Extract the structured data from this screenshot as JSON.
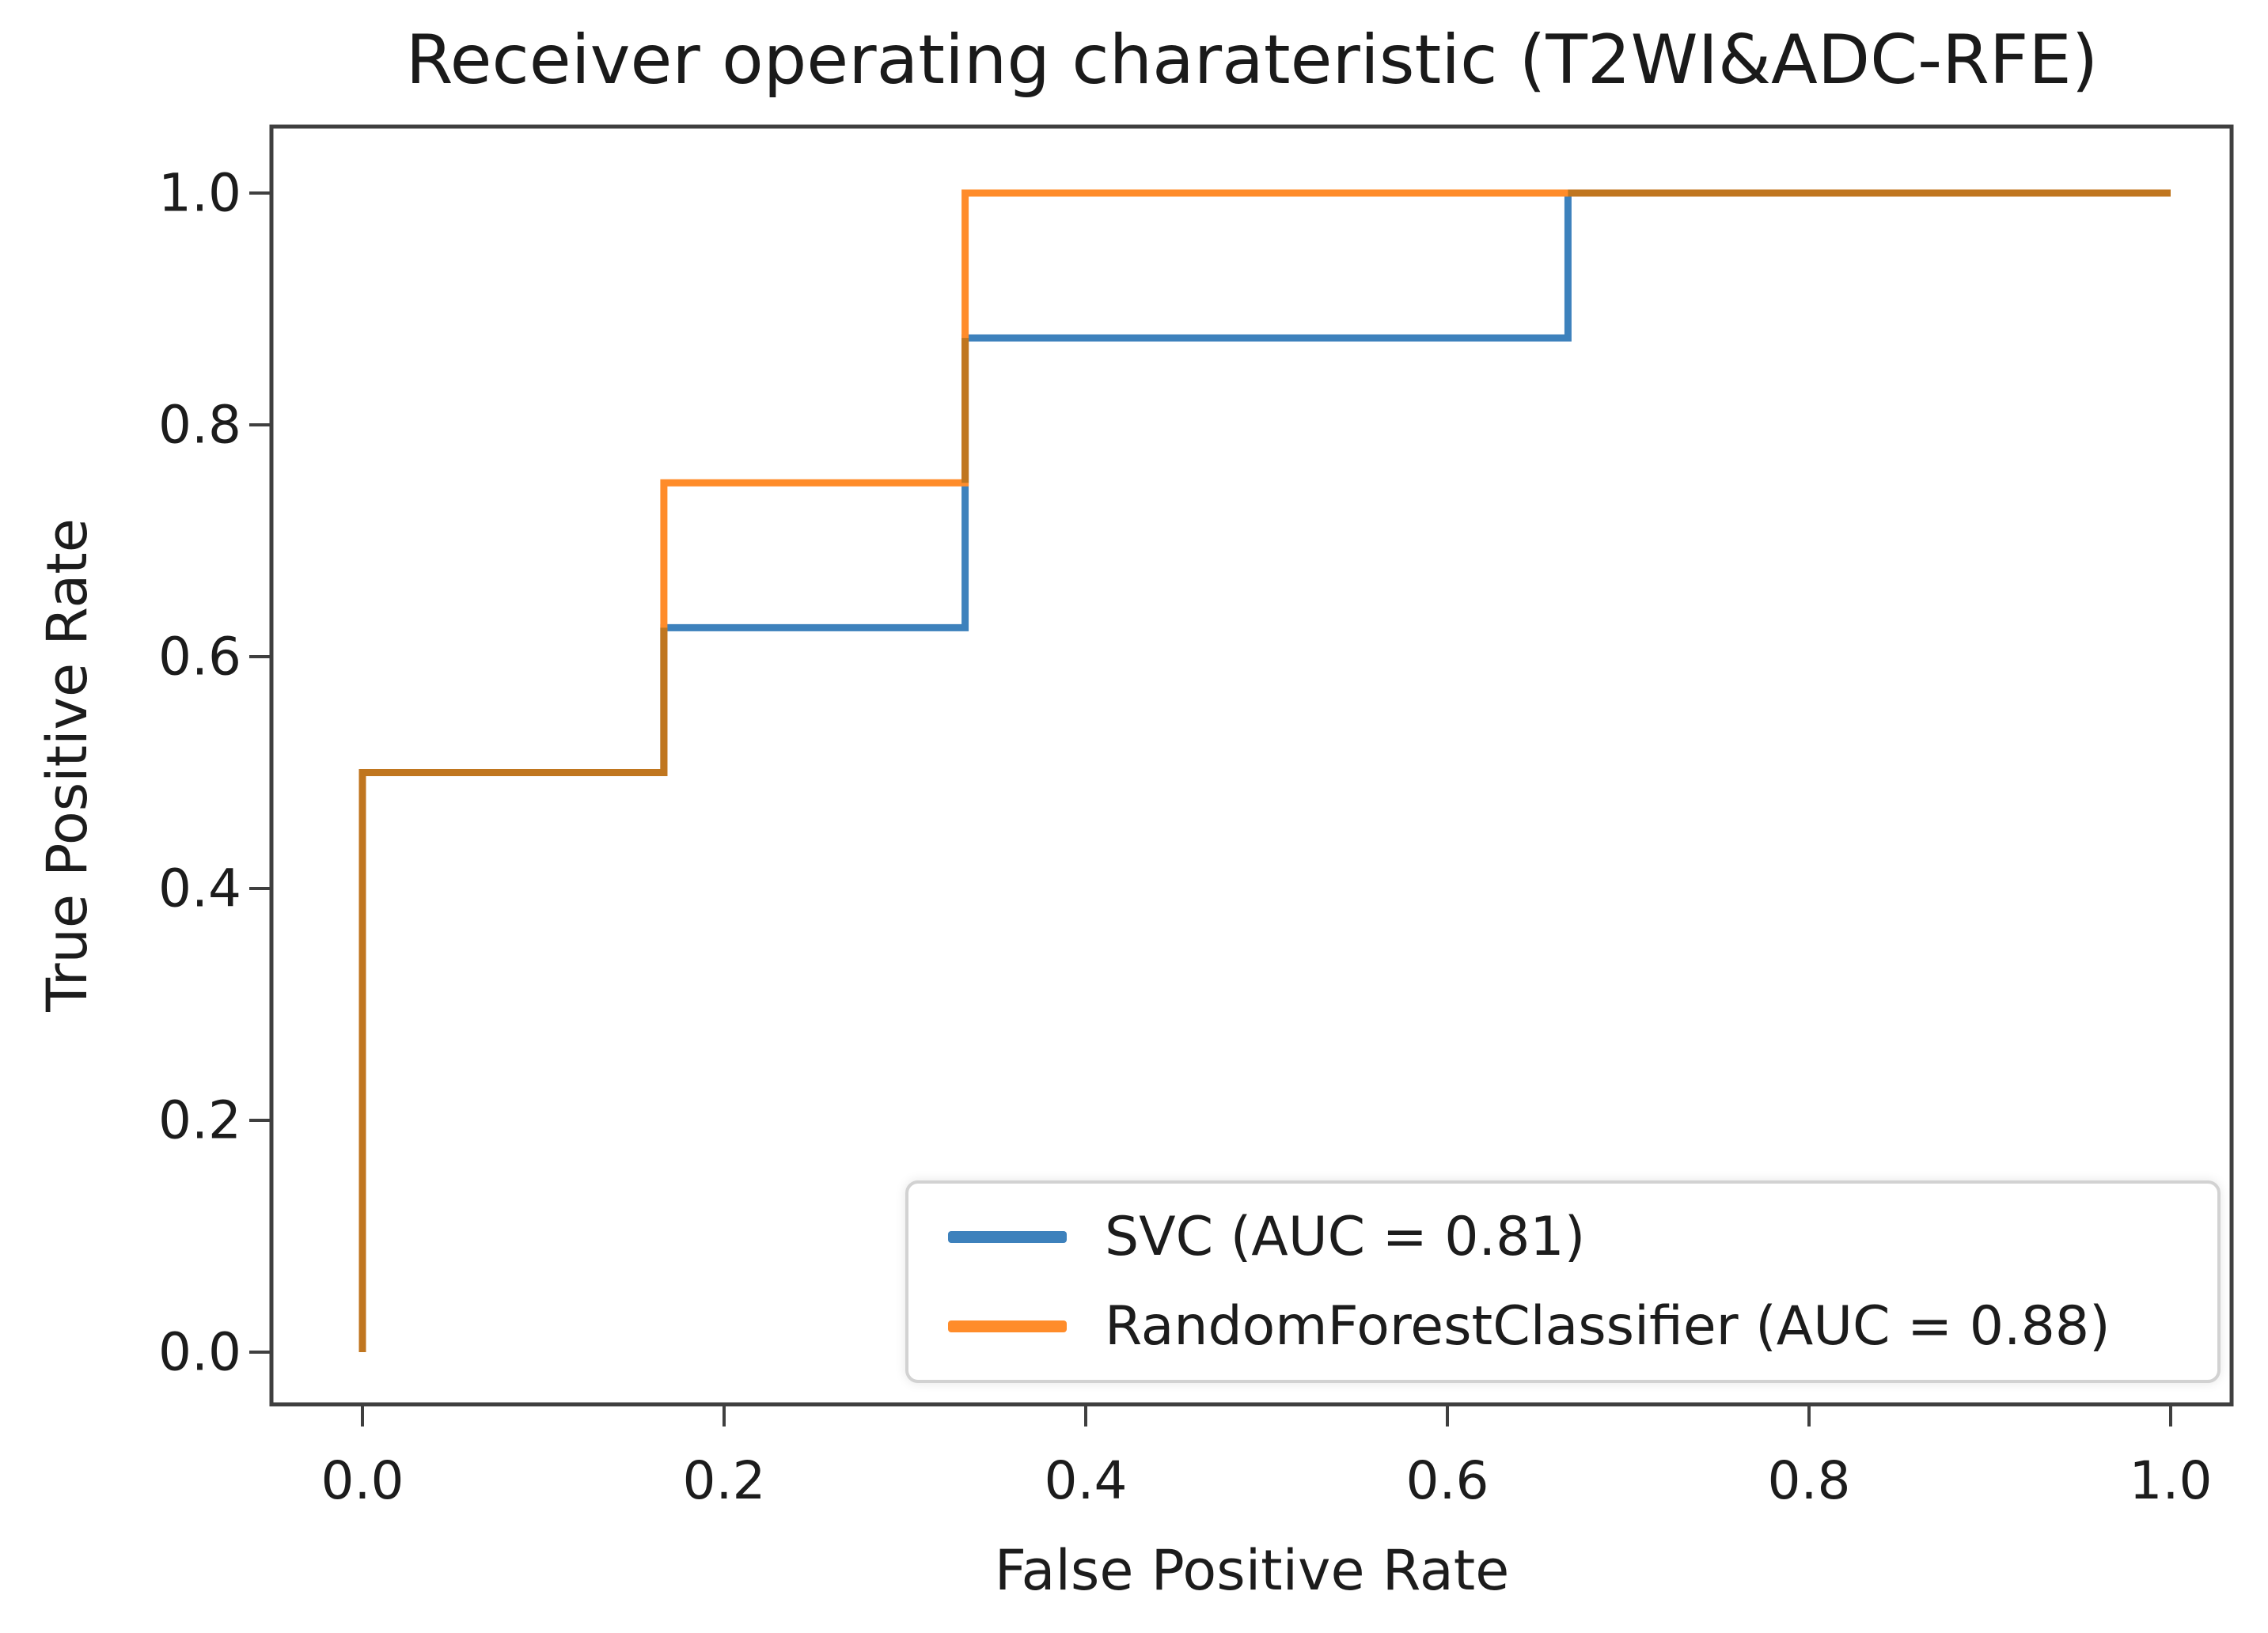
{
  "figure": {
    "title": "Receiver operating charateristic (T2WI&ADC-RFE)",
    "xlabel": "False Positive Rate",
    "ylabel": "True Positive Rate"
  },
  "chart_data": {
    "type": "line",
    "title": "Receiver operating charateristic (T2WI&ADC-RFE)",
    "xlabel": "False Positive Rate",
    "ylabel": "True Positive Rate",
    "xlim": [
      0.0,
      1.0
    ],
    "ylim": [
      0.0,
      1.0
    ],
    "xticks": [
      0.0,
      0.2,
      0.4,
      0.6,
      0.8,
      1.0
    ],
    "yticks": [
      0.0,
      0.2,
      0.4,
      0.6,
      0.8,
      1.0
    ],
    "grid": false,
    "legend_position": "lower right",
    "series": [
      {
        "name": "SVC (AUC = 0.81)",
        "model": "SVC",
        "auc": 0.81,
        "color": "#3d81bc",
        "points": [
          [
            0,
            0
          ],
          [
            0,
            0.5
          ],
          [
            0.1667,
            0.5
          ],
          [
            0.1667,
            0.625
          ],
          [
            0.3333,
            0.625
          ],
          [
            0.3333,
            0.875
          ],
          [
            0.6667,
            0.875
          ],
          [
            0.6667,
            1.0
          ],
          [
            1.0,
            1.0
          ]
        ]
      },
      {
        "name": "RandomForestClassifier (AUC = 0.88)",
        "model": "RandomForestClassifier",
        "auc": 0.88,
        "color": "#ff8c2a",
        "points": [
          [
            0,
            0
          ],
          [
            0,
            0.5
          ],
          [
            0.1667,
            0.5
          ],
          [
            0.1667,
            0.75
          ],
          [
            0.3333,
            0.75
          ],
          [
            0.3333,
            1.0
          ],
          [
            1.0,
            1.0
          ]
        ]
      }
    ]
  }
}
